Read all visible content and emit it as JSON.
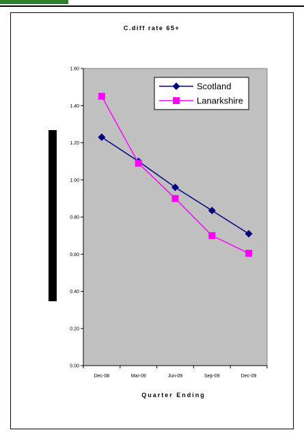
{
  "chart_data": {
    "type": "line",
    "title": "C.diff rate 65+",
    "xlabel": "Quarter Ending",
    "ylabel": "",
    "categories": [
      "Dec-08",
      "Mar-09",
      "Jun-09",
      "Sep-09",
      "Dec-09"
    ],
    "ylim": [
      0,
      1.6
    ],
    "yticks": [
      "0.00",
      "0.20",
      "0.40",
      "0.60",
      "0.80",
      "1.00",
      "1.20",
      "1.40",
      "1.60"
    ],
    "legend_position": "top-right",
    "plot_background": "#c0c0c0",
    "series": [
      {
        "name": "Scotland",
        "color": "#000080",
        "marker": "diamond",
        "values": [
          1.23,
          1.1,
          0.96,
          0.835,
          0.71
        ]
      },
      {
        "name": "Lanarkshire",
        "color": "#ff00ff",
        "marker": "square",
        "values": [
          1.45,
          1.09,
          0.9,
          0.7,
          0.605
        ]
      }
    ]
  }
}
